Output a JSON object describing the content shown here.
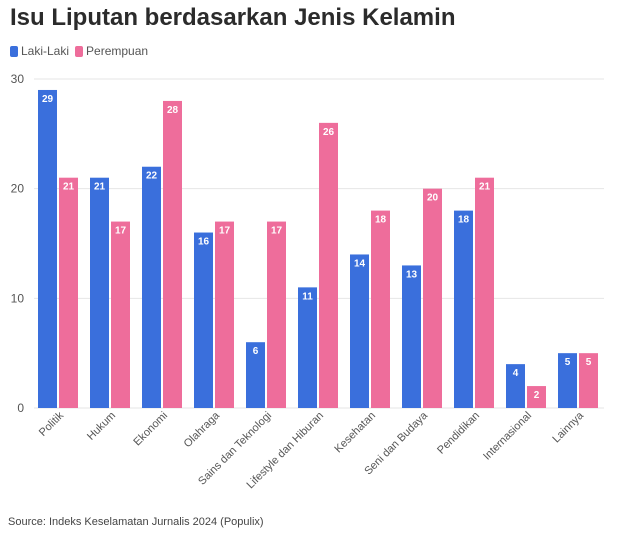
{
  "chart_data": {
    "type": "bar",
    "title": "Isu Liputan berdasarkan Jenis Kelamin",
    "categories": [
      "Politik",
      "Hukum",
      "Ekonomi",
      "Olahraga",
      "Sains dan Teknologi",
      "Lifestyle dan Hiburan",
      "Kesehatan",
      "Seni dan Budaya",
      "Pendidikan",
      "Internasional",
      "Lainnya"
    ],
    "series": [
      {
        "name": "Laki-Laki",
        "color": "#3a6fdc",
        "values": [
          29,
          21,
          22,
          16,
          6,
          11,
          14,
          13,
          18,
          4,
          5
        ]
      },
      {
        "name": "Perempuan",
        "color": "#ee6d9b",
        "values": [
          21,
          17,
          28,
          17,
          17,
          26,
          18,
          20,
          21,
          2,
          5
        ]
      }
    ],
    "ylim": [
      0,
      30
    ],
    "yticks": [
      "0",
      "10",
      "20",
      "30"
    ],
    "grid": true,
    "legend_position": "top-left",
    "source": "Source: Indeks Keselamatan Jurnalis 2024 (Populix)"
  }
}
